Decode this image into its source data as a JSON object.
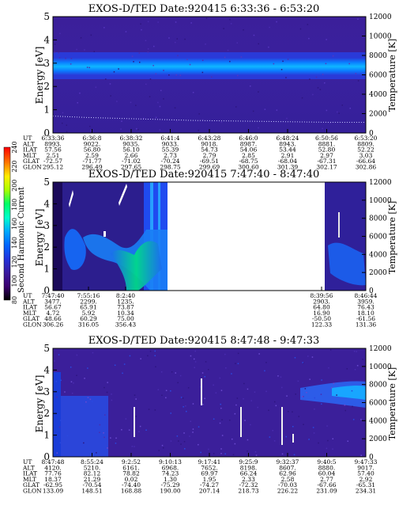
{
  "colorbar": {
    "title": "Second Harmonic Current",
    "ticks": [
      "80",
      "100",
      "120",
      "140",
      "160",
      "180",
      "200",
      "220",
      "240"
    ],
    "colors": [
      "#000000",
      "#3a0070",
      "#3a1aa0",
      "#2233dd",
      "#0066ff",
      "#00aaff",
      "#00ffcc",
      "#00ff66",
      "#aaff00",
      "#ffee00",
      "#ff7700",
      "#ff0000"
    ]
  },
  "chart_data": [
    {
      "type": "heatmap",
      "title": "EXOS-D/TED   Date:920415   6:33:36 - 6:53:20",
      "ylabel": "Energy [eV]",
      "ylabel_right": "Temperature [K]",
      "ylim": [
        0,
        5
      ],
      "ylim_right": [
        0,
        12000
      ],
      "yticks": [
        "0",
        "1",
        "2",
        "3",
        "4",
        "5"
      ],
      "yticks_right": [
        "0",
        "2000",
        "4000",
        "6000",
        "8000",
        "10000",
        "12000"
      ],
      "orbit_labels": [
        "UT",
        "ALT",
        "ILAT",
        "MLT",
        "GLAT",
        "GLON"
      ],
      "orbit_columns": [
        [
          "6:33:36",
          "8993.",
          "57.56",
          "2.51",
          "-72.57",
          "295.12"
        ],
        [
          "6:36:8",
          "9022.",
          "56.80",
          "2.59",
          "-71.77",
          "296.49"
        ],
        [
          "6:38:32",
          "9035.",
          "56.10",
          "2.66",
          "-71.02",
          "297.65"
        ],
        [
          "6:41:4",
          "9033.",
          "55.39",
          "2.73",
          "-70.24",
          "298.75"
        ],
        [
          "6:43:28",
          "9018.",
          "54.73",
          "2.79",
          "-69.51",
          "299.69"
        ],
        [
          "6:46:0",
          "8987.",
          "54.06",
          "2.85",
          "-68.75",
          "300.60"
        ],
        [
          "6:48:24",
          "8943.",
          "53.44",
          "2.91",
          "-68.04",
          "301.39"
        ],
        [
          "6:50:56",
          "8881.",
          "52.80",
          "2.97",
          "-67.31",
          "302.17"
        ],
        [
          "6:53:20",
          "8809.",
          "52.22",
          "3.03",
          "-66.64",
          "302.86"
        ]
      ],
      "bands": [
        {
          "e_low": 2.2,
          "e_high": 3.3,
          "level": "high"
        },
        {
          "e_low": 2.45,
          "e_high": 3.0,
          "level": "peak"
        }
      ],
      "temperature_trace": [
        1750,
        1600,
        1500,
        1400,
        1300,
        1250,
        1200,
        1150,
        1100,
        1100
      ]
    },
    {
      "type": "heatmap",
      "title": "EXOS-D/TED   Date:920415   7:47:40 - 8:47:40",
      "ylabel": "Energy [eV]",
      "ylabel_right": "Temperature [K]",
      "ylim": [
        0,
        5
      ],
      "ylim_right": [
        0,
        12000
      ],
      "yticks": [
        "0",
        "1",
        "2",
        "3",
        "4",
        "5"
      ],
      "yticks_right": [
        "0",
        "2000",
        "4000",
        "6000",
        "8000",
        "10000",
        "12000"
      ],
      "orbit_labels": [
        "UT",
        "ALT",
        "ILAT",
        "MLT",
        "GLAT",
        "GLON"
      ],
      "orbit_columns_left": [
        [
          "7:47:40",
          "3477.",
          "56.67",
          "4.72",
          "48.66",
          "306.26"
        ],
        [
          "7:55:16",
          "2299.",
          "65.91",
          "5.92",
          "60.29",
          "316.05"
        ],
        [
          "8:2:40",
          "1235.",
          "73.87",
          "10.34",
          "75.00",
          "356.43"
        ]
      ],
      "orbit_columns_right": [
        [
          "8:39:56",
          "2903.",
          "64.80",
          "16.90",
          "-50.50",
          "122.33"
        ],
        [
          "8:46:44",
          "3959.",
          "76.43",
          "18.10",
          "-61.56",
          "131.36"
        ]
      ],
      "data_gap": "8:11 - 8:38"
    },
    {
      "type": "heatmap",
      "title": "EXOS-D/TED   Date:920415   8:47:48 - 9:47:33",
      "ylabel": "Energy [eV]",
      "ylabel_right": "Temperature [K]",
      "ylim": [
        0,
        5
      ],
      "ylim_right": [
        0,
        12000
      ],
      "yticks": [
        "0",
        "1",
        "2",
        "3",
        "4",
        "5"
      ],
      "yticks_right": [
        "0",
        "2000",
        "4000",
        "6000",
        "8000",
        "10000",
        "12000"
      ],
      "orbit_labels": [
        "UT",
        "ALT",
        "ILAT",
        "MLT",
        "GLAT",
        "GLON"
      ],
      "orbit_columns": [
        [
          "8:47:48",
          "4120.",
          "77.76",
          "18.37",
          "-62.95",
          "133.09"
        ],
        [
          "8:55:24",
          "5210.",
          "82.12",
          "21.29",
          "-70.54",
          "148.51"
        ],
        [
          "9:2:52",
          "6161.",
          "78.82",
          "0.02",
          "-74.40",
          "168.88"
        ],
        [
          "9:10:13",
          "6968.",
          "74.23",
          "1.30",
          "-75.29",
          "190.00"
        ],
        [
          "9:17:41",
          "7652.",
          "69.97",
          "1.95",
          "-74.27",
          "207.14"
        ],
        [
          "9:25:9",
          "8198.",
          "66.24",
          "2.33",
          "-72.32",
          "218.73"
        ],
        [
          "9:32:37",
          "8607.",
          "62.96",
          "2.58",
          "-70.03",
          "226.22"
        ],
        [
          "9:40:5",
          "8880.",
          "60.04",
          "2.77",
          "-67.66",
          "231.09"
        ],
        [
          "9:47:33",
          "9017.",
          "57.40",
          "2.92",
          "-65.31",
          "234.31"
        ]
      ]
    }
  ]
}
